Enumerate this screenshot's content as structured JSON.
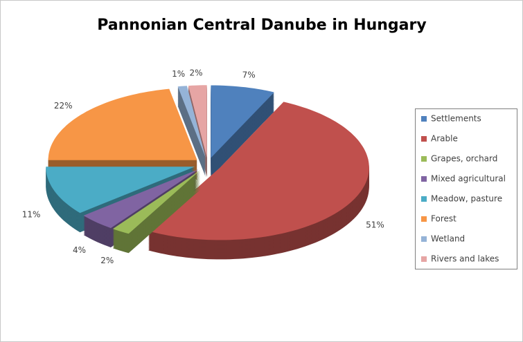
{
  "chart_data": {
    "type": "pie",
    "title": "Pannonian Central Danube in Hungary",
    "categories": [
      "Settlements",
      "Arable",
      "Grapes, orchard",
      "Mixed agricultural",
      "Meadow, pasture",
      "Forest",
      "Wetland",
      "Rivers and lakes"
    ],
    "values": [
      7,
      51,
      2,
      4,
      11,
      22,
      1,
      2
    ],
    "value_labels": [
      "7%",
      "51%",
      "2%",
      "4%",
      "11%",
      "22%",
      "1%",
      "2%"
    ],
    "colors": [
      "#4f81bd",
      "#c0504d",
      "#9bbb59",
      "#8064a2",
      "#4bacc6",
      "#f79646",
      "#95b3d7",
      "#e6a5a4"
    ],
    "legend": "right"
  }
}
